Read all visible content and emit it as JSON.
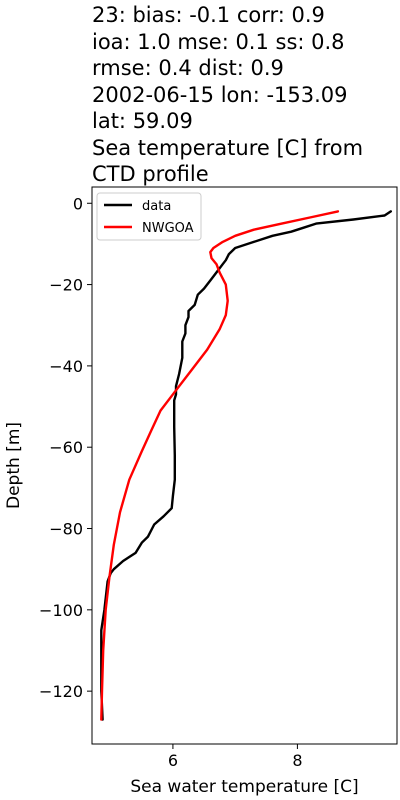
{
  "title_lines": [
    "23: bias: -0.1  corr: 0.9",
    "ioa: 1.0  mse: 0.1  ss: 0.8",
    "rmse: 0.4  dist: 0.9",
    "2002-06-15 lon: -153.09",
    "lat: 59.09",
    "Sea temperature [C] from",
    "CTD profile"
  ],
  "chart_data": {
    "type": "line",
    "title": "23: bias: -0.1  corr: 0.9 ioa: 1.0  mse: 0.1  ss: 0.8 rmse: 0.4  dist: 0.9 2002-06-15 lon: -153.09 lat: 59.09 Sea temperature [C] from CTD profile",
    "xlabel": "Sea water temperature [C]",
    "ylabel": "Depth [m]",
    "xlim": [
      4.7,
      9.6
    ],
    "ylim": [
      -133,
      4
    ],
    "xticks": [
      6,
      8
    ],
    "yticks": [
      0,
      -20,
      -40,
      -60,
      -80,
      -100,
      -120
    ],
    "xtick_labels": [
      "6",
      "8"
    ],
    "ytick_labels": [
      "0",
      "−20",
      "−40",
      "−60",
      "−80",
      "−100",
      "−120"
    ],
    "grid": false,
    "legend_position": "upper left",
    "series": [
      {
        "name": "data",
        "color": "#000000",
        "points": [
          [
            9.5,
            -2
          ],
          [
            9.4,
            -3
          ],
          [
            8.9,
            -4
          ],
          [
            8.3,
            -5
          ],
          [
            8.1,
            -6
          ],
          [
            7.9,
            -7
          ],
          [
            7.6,
            -8
          ],
          [
            7.3,
            -9.5
          ],
          [
            7.0,
            -11
          ],
          [
            6.9,
            -12.5
          ],
          [
            6.85,
            -14
          ],
          [
            6.8,
            -15
          ],
          [
            6.7,
            -17
          ],
          [
            6.6,
            -19
          ],
          [
            6.5,
            -21
          ],
          [
            6.4,
            -22.5
          ],
          [
            6.35,
            -25
          ],
          [
            6.25,
            -26.5
          ],
          [
            6.25,
            -28
          ],
          [
            6.2,
            -30
          ],
          [
            6.2,
            -32
          ],
          [
            6.15,
            -34
          ],
          [
            6.15,
            -38
          ],
          [
            6.1,
            -42
          ],
          [
            6.05,
            -45
          ],
          [
            6.05,
            -47
          ],
          [
            6.02,
            -48.5
          ],
          [
            6.02,
            -55
          ],
          [
            6.03,
            -62
          ],
          [
            6.03,
            -68
          ],
          [
            6.0,
            -72
          ],
          [
            5.98,
            -75
          ],
          [
            5.85,
            -77
          ],
          [
            5.7,
            -79
          ],
          [
            5.6,
            -82
          ],
          [
            5.5,
            -83.5
          ],
          [
            5.4,
            -86
          ],
          [
            5.2,
            -88
          ],
          [
            5.05,
            -90
          ],
          [
            5.0,
            -91
          ],
          [
            4.95,
            -93
          ],
          [
            4.9,
            -100
          ],
          [
            4.85,
            -105
          ],
          [
            4.85,
            -110
          ],
          [
            4.85,
            -120
          ],
          [
            4.87,
            -127
          ]
        ]
      },
      {
        "name": "NWGOA",
        "color": "#ff0000",
        "points": [
          [
            8.65,
            -2
          ],
          [
            8.2,
            -3.5
          ],
          [
            7.75,
            -5
          ],
          [
            7.3,
            -6.5
          ],
          [
            7.0,
            -8
          ],
          [
            6.8,
            -9.5
          ],
          [
            6.65,
            -11
          ],
          [
            6.6,
            -12
          ],
          [
            6.62,
            -13.5
          ],
          [
            6.7,
            -15
          ],
          [
            6.75,
            -17
          ],
          [
            6.85,
            -20
          ],
          [
            6.88,
            -24
          ],
          [
            6.85,
            -27.5
          ],
          [
            6.75,
            -31
          ],
          [
            6.55,
            -36
          ],
          [
            6.3,
            -41
          ],
          [
            6.05,
            -46
          ],
          [
            5.8,
            -51
          ],
          [
            5.65,
            -56
          ],
          [
            5.5,
            -61
          ],
          [
            5.3,
            -68
          ],
          [
            5.15,
            -76
          ],
          [
            5.05,
            -84
          ],
          [
            4.98,
            -92
          ],
          [
            4.92,
            -100
          ],
          [
            4.88,
            -110
          ],
          [
            4.86,
            -120
          ],
          [
            4.85,
            -127
          ]
        ]
      }
    ]
  }
}
